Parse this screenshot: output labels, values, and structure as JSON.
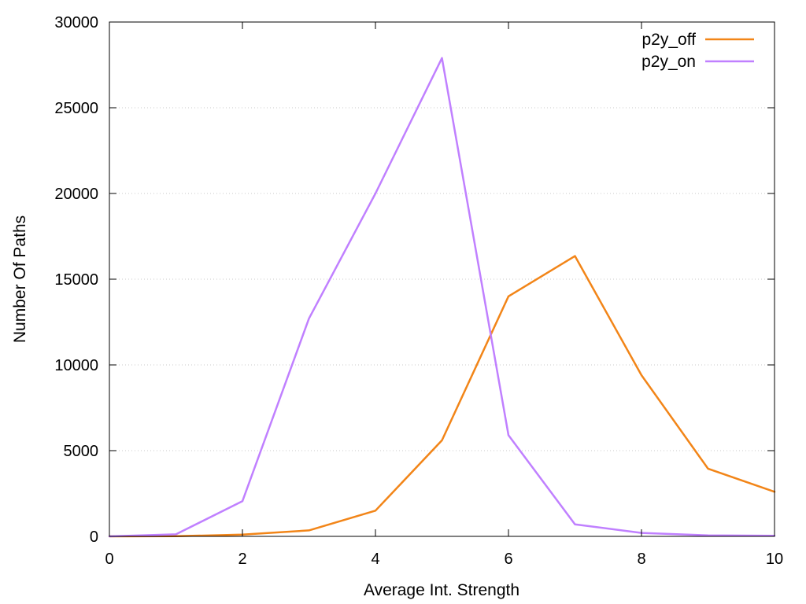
{
  "chart_data": {
    "type": "line",
    "xlabel": "Average Int. Strength",
    "ylabel": "Number Of Paths",
    "xlim": [
      0,
      10
    ],
    "ylim": [
      0,
      30000
    ],
    "x_ticks": [
      0,
      2,
      4,
      6,
      8,
      10
    ],
    "y_ticks": [
      0,
      5000,
      10000,
      15000,
      20000,
      25000,
      30000
    ],
    "grid": true,
    "legend_position": "top-right",
    "x": [
      0,
      1,
      2,
      3,
      4,
      5,
      6,
      7,
      8,
      9,
      10
    ],
    "series": [
      {
        "name": "p2y_off",
        "color": "#f28518",
        "values": [
          0,
          10,
          100,
          350,
          1500,
          5600,
          14000,
          16350,
          9400,
          3950,
          2600
        ]
      },
      {
        "name": "p2y_on",
        "color": "#c080ff",
        "values": [
          0,
          120,
          2050,
          12700,
          20000,
          27900,
          5900,
          700,
          200,
          60,
          30
        ]
      }
    ]
  }
}
